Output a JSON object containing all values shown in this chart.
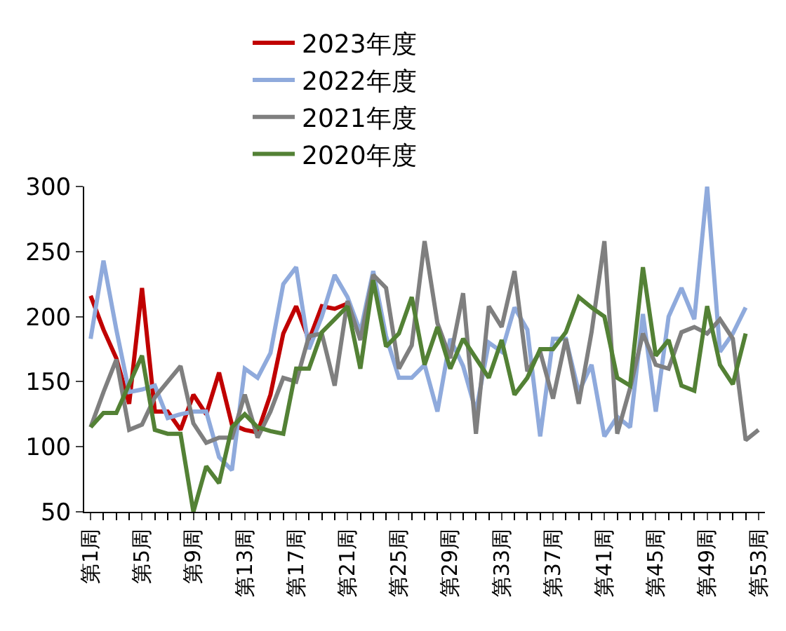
{
  "chart_data": {
    "type": "line",
    "categories": [
      "第1周",
      null,
      null,
      null,
      "第5周",
      null,
      null,
      null,
      "第9周",
      null,
      null,
      null,
      "第13周",
      null,
      null,
      null,
      "第17周",
      null,
      null,
      null,
      "第21周",
      null,
      null,
      null,
      "第25周",
      null,
      null,
      null,
      "第29周",
      null,
      null,
      null,
      "第33周",
      null,
      null,
      null,
      "第37周",
      null,
      null,
      null,
      "第41周",
      null,
      null,
      null,
      "第45周",
      null,
      null,
      null,
      "第49周",
      null,
      null,
      null,
      "第53周"
    ],
    "series": [
      {
        "name": "2023年度",
        "color": "#c00000",
        "values": [
          216,
          190,
          168,
          133,
          222,
          127,
          127,
          113,
          140,
          125,
          157,
          117,
          113,
          111,
          140,
          187,
          208,
          182,
          208,
          206,
          210,
          null,
          null,
          null,
          null,
          null,
          null,
          null,
          null,
          null,
          null,
          null,
          null,
          null,
          null,
          null,
          null,
          null,
          null,
          null,
          null,
          null,
          null,
          null,
          null,
          null,
          null,
          null,
          null,
          null,
          null,
          null,
          null
        ]
      },
      {
        "name": "2022年度",
        "color": "#8faadc",
        "values": [
          183,
          243,
          190,
          142,
          144,
          147,
          122,
          125,
          127,
          127,
          92,
          82,
          160,
          153,
          172,
          225,
          238,
          175,
          200,
          232,
          215,
          188,
          235,
          185,
          153,
          153,
          163,
          127,
          183,
          162,
          127,
          180,
          173,
          207,
          190,
          108,
          183,
          183,
          142,
          163,
          108,
          123,
          115,
          202,
          127,
          200,
          222,
          198,
          300,
          173,
          187,
          207,
          null
        ]
      },
      {
        "name": "2021年度",
        "color": "#7f7f7f",
        "values": [
          115,
          142,
          167,
          113,
          117,
          138,
          150,
          162,
          118,
          103,
          107,
          107,
          140,
          107,
          127,
          153,
          150,
          185,
          187,
          147,
          212,
          182,
          232,
          222,
          160,
          178,
          258,
          195,
          168,
          218,
          110,
          208,
          192,
          235,
          158,
          173,
          137,
          183,
          133,
          188,
          258,
          110,
          145,
          187,
          163,
          160,
          188,
          192,
          187,
          198,
          183,
          105,
          113
        ]
      },
      {
        "name": "2020年度",
        "color": "#538135",
        "values": [
          115,
          126,
          126,
          148,
          170,
          113,
          110,
          110,
          50,
          85,
          72,
          115,
          125,
          115,
          112,
          110,
          160,
          160,
          188,
          198,
          208,
          160,
          228,
          177,
          187,
          215,
          163,
          192,
          160,
          183,
          168,
          153,
          182,
          140,
          153,
          175,
          175,
          188,
          215,
          207,
          200,
          153,
          147,
          238,
          170,
          182,
          147,
          143,
          208,
          163,
          148,
          187,
          null
        ]
      }
    ],
    "ylim": [
      50,
      300
    ],
    "yticks": [
      50,
      100,
      150,
      200,
      250,
      300
    ],
    "grid": false,
    "legend": "top",
    "marker": "none",
    "line_style": "solid"
  }
}
